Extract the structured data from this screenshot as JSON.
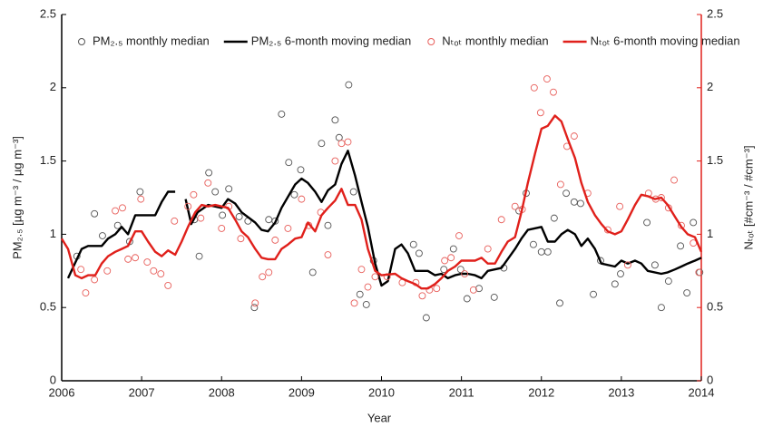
{
  "chart_data": {
    "type": "line",
    "x_label": "Year",
    "y_label": "PM₂.₅ [µg m⁻³ / µg m⁻³]",
    "y2_label": "Nₜₒₜ [#cm⁻³ / #cm⁻³]",
    "xlim": [
      2006,
      2014
    ],
    "xticks": [
      2006,
      2007,
      2008,
      2009,
      2010,
      2011,
      2012,
      2013,
      2014
    ],
    "ylim": [
      0,
      2.5
    ],
    "yticks": [
      0,
      0.5,
      1,
      1.5,
      2,
      2.5
    ],
    "y2lim": [
      0,
      2.5
    ],
    "y2ticks": [
      0,
      0.5,
      1,
      1.5,
      2,
      2.5
    ],
    "grid": false,
    "y_color": "#000000",
    "y2_color": "#e0201b",
    "legend": "top",
    "series": [
      {
        "name": "PM₂.₅ monthly median",
        "style": "markers",
        "color": "#555555",
        "axis": "y",
        "x": [
          2006.19,
          2006.41,
          2006.51,
          2006.7,
          2006.85,
          2006.98,
          2007.66,
          2007.72,
          2007.84,
          2007.92,
          2008.01,
          2008.09,
          2008.22,
          2008.33,
          2008.41,
          2008.59,
          2008.67,
          2008.75,
          2008.84,
          2008.91,
          2008.99,
          2009.14,
          2009.25,
          2009.33,
          2009.42,
          2009.47,
          2009.59,
          2009.65,
          2009.73,
          2009.81,
          2009.9,
          2010.4,
          2010.47,
          2010.56,
          2010.78,
          2010.9,
          2010.99,
          2011.07,
          2011.22,
          2011.41,
          2011.53,
          2011.72,
          2011.81,
          2011.9,
          2012.0,
          2012.08,
          2012.16,
          2012.23,
          2012.31,
          2012.41,
          2012.49,
          2012.65,
          2012.74,
          2012.92,
          2012.99,
          2013.32,
          2013.42,
          2013.5,
          2013.59,
          2013.74,
          2013.82,
          2013.9,
          2013.98
        ],
        "values": [
          0.85,
          1.14,
          0.99,
          1.06,
          0.95,
          1.29,
          1.1,
          0.85,
          1.42,
          1.29,
          1.13,
          1.31,
          1.12,
          1.09,
          0.5,
          1.1,
          1.09,
          1.82,
          1.49,
          1.27,
          1.44,
          0.74,
          1.62,
          1.06,
          1.78,
          1.66,
          2.02,
          1.29,
          0.59,
          0.52,
          0.82,
          0.93,
          0.87,
          0.43,
          0.76,
          0.9,
          0.76,
          0.56,
          0.63,
          0.57,
          0.77,
          1.16,
          1.28,
          0.93,
          0.88,
          0.88,
          1.11,
          0.53,
          1.28,
          1.22,
          1.21,
          0.59,
          0.82,
          0.66,
          0.73,
          1.08,
          0.79,
          0.5,
          0.68,
          0.92,
          0.6,
          1.08,
          0.74
        ]
      },
      {
        "name": "PM₂.₅ 6-month moving median",
        "style": "line",
        "color": "#000000",
        "axis": "y",
        "x": [
          2006.08,
          2006.25,
          2006.33,
          2006.5,
          2006.58,
          2006.67,
          2006.75,
          2006.83,
          2006.92,
          2007.0,
          2007.17,
          2007.25,
          2007.33,
          2007.42,
          2007.5,
          2007.55,
          2007.62,
          2007.7,
          2007.83,
          2008.0,
          2008.08,
          2008.17,
          2008.25,
          2008.42,
          2008.5,
          2008.58,
          2008.67,
          2008.75,
          2008.92,
          2009.0,
          2009.08,
          2009.17,
          2009.25,
          2009.33,
          2009.42,
          2009.5,
          2009.58,
          2009.67,
          2009.75,
          2009.83,
          2009.92,
          2010.0,
          2010.08,
          2010.17,
          2010.25,
          2010.33,
          2010.42,
          2010.5,
          2010.58,
          2010.67,
          2010.75,
          2010.83,
          2010.92,
          2011.0,
          2011.08,
          2011.17,
          2011.25,
          2011.33,
          2011.5,
          2011.67,
          2011.75,
          2011.83,
          2012.0,
          2012.08,
          2012.17,
          2012.25,
          2012.33,
          2012.42,
          2012.5,
          2012.58,
          2012.67,
          2012.75,
          2012.92,
          2013.0,
          2013.08,
          2013.17,
          2013.25,
          2013.33,
          2013.5,
          2013.58,
          2013.67,
          2013.75,
          2013.83,
          2013.92,
          2014.0
        ],
        "values": [
          0.7,
          0.9,
          0.92,
          0.92,
          0.97,
          1.0,
          1.05,
          1.0,
          1.13,
          1.13,
          1.13,
          1.22,
          1.29,
          1.29,
          null,
          1.24,
          1.07,
          1.15,
          1.2,
          1.18,
          1.24,
          1.21,
          1.15,
          1.08,
          1.03,
          1.02,
          1.08,
          1.18,
          1.34,
          1.38,
          1.35,
          1.29,
          1.22,
          1.3,
          1.34,
          1.48,
          1.57,
          1.4,
          1.22,
          1.05,
          0.8,
          0.65,
          0.68,
          0.9,
          0.93,
          0.87,
          0.75,
          0.75,
          0.75,
          0.72,
          0.73,
          0.7,
          0.72,
          0.73,
          0.73,
          0.72,
          0.7,
          0.75,
          0.77,
          0.9,
          0.97,
          1.03,
          1.05,
          0.95,
          0.95,
          1.0,
          1.03,
          1.0,
          0.92,
          0.97,
          0.9,
          0.8,
          0.78,
          0.82,
          0.8,
          0.82,
          0.8,
          0.75,
          0.73,
          0.74,
          0.76,
          0.78,
          0.8,
          0.82,
          0.84
        ]
      },
      {
        "name": "Nₜₒₜ monthly median",
        "style": "markers",
        "color": "#e8605c",
        "axis": "y2",
        "x": [
          2006.24,
          2006.3,
          2006.41,
          2006.57,
          2006.67,
          2006.76,
          2006.83,
          2006.92,
          2006.99,
          2007.07,
          2007.15,
          2007.24,
          2007.33,
          2007.41,
          2007.58,
          2007.65,
          2007.74,
          2007.83,
          2008.0,
          2008.09,
          2008.24,
          2008.42,
          2008.51,
          2008.59,
          2008.67,
          2008.83,
          2009.0,
          2009.09,
          2009.24,
          2009.33,
          2009.42,
          2009.5,
          2009.58,
          2009.66,
          2009.75,
          2009.83,
          2009.92,
          2010.07,
          2010.26,
          2010.43,
          2010.51,
          2010.6,
          2010.69,
          2010.79,
          2010.87,
          2010.97,
          2011.04,
          2011.15,
          2011.33,
          2011.5,
          2011.67,
          2011.76,
          2011.91,
          2011.99,
          2012.07,
          2012.15,
          2012.24,
          2012.32,
          2012.41,
          2012.58,
          2012.83,
          2012.98,
          2013.08,
          2013.34,
          2013.43,
          2013.5,
          2013.59,
          2013.66,
          2013.75,
          2013.9,
          2013.97
        ],
        "values": [
          0.76,
          0.6,
          0.69,
          0.75,
          1.16,
          1.18,
          0.83,
          0.84,
          1.24,
          0.81,
          0.75,
          0.73,
          0.65,
          1.09,
          1.19,
          1.27,
          1.11,
          1.35,
          1.04,
          1.19,
          0.97,
          0.53,
          0.71,
          0.74,
          0.96,
          1.04,
          1.24,
          1.06,
          1.15,
          0.86,
          1.5,
          1.62,
          1.63,
          0.53,
          0.76,
          0.64,
          0.71,
          0.71,
          0.67,
          0.67,
          0.58,
          0.62,
          0.63,
          0.82,
          0.84,
          0.99,
          0.73,
          0.62,
          0.9,
          1.1,
          1.19,
          1.17,
          2.0,
          1.83,
          2.06,
          1.97,
          1.34,
          1.6,
          1.67,
          1.28,
          1.03,
          1.19,
          0.79,
          1.28,
          1.24,
          1.25,
          1.18,
          1.37,
          1.06,
          0.94,
          0.74
        ]
      },
      {
        "name": "Nₜₒₜ 6-month moving median",
        "style": "line",
        "color": "#e0201b",
        "axis": "y2",
        "x": [
          2006.0,
          2006.08,
          2006.17,
          2006.25,
          2006.33,
          2006.42,
          2006.5,
          2006.58,
          2006.67,
          2006.75,
          2006.83,
          2006.92,
          2007.0,
          2007.08,
          2007.17,
          2007.25,
          2007.33,
          2007.42,
          2007.5,
          2007.58,
          2007.67,
          2007.75,
          2007.83,
          2007.92,
          2008.0,
          2008.08,
          2008.17,
          2008.25,
          2008.33,
          2008.42,
          2008.5,
          2008.58,
          2008.67,
          2008.75,
          2008.83,
          2008.92,
          2009.0,
          2009.08,
          2009.17,
          2009.25,
          2009.33,
          2009.42,
          2009.5,
          2009.58,
          2009.67,
          2009.75,
          2009.83,
          2009.92,
          2010.0,
          2010.17,
          2010.25,
          2010.33,
          2010.42,
          2010.5,
          2010.58,
          2010.67,
          2010.75,
          2010.83,
          2010.92,
          2011.0,
          2011.17,
          2011.25,
          2011.33,
          2011.42,
          2011.5,
          2011.58,
          2011.67,
          2011.75,
          2011.83,
          2011.92,
          2012.0,
          2012.08,
          2012.17,
          2012.25,
          2012.33,
          2012.42,
          2012.5,
          2012.58,
          2012.67,
          2012.75,
          2012.83,
          2012.92,
          2013.0,
          2013.08,
          2013.17,
          2013.25,
          2013.33,
          2013.42,
          2013.5,
          2013.58,
          2013.67,
          2013.75,
          2013.83,
          2013.92,
          2014.0
        ],
        "values": [
          0.97,
          0.9,
          0.72,
          0.7,
          0.72,
          0.72,
          0.8,
          0.85,
          0.88,
          0.9,
          0.92,
          1.02,
          1.02,
          0.95,
          0.88,
          0.85,
          0.89,
          0.86,
          0.95,
          1.05,
          1.15,
          1.2,
          1.19,
          1.2,
          1.19,
          1.18,
          1.1,
          1.02,
          0.98,
          0.9,
          0.84,
          0.83,
          0.83,
          0.9,
          0.93,
          0.97,
          0.98,
          1.08,
          1.02,
          1.13,
          1.18,
          1.23,
          1.31,
          1.2,
          1.2,
          1.1,
          0.9,
          0.75,
          0.72,
          0.73,
          0.7,
          0.68,
          0.66,
          0.63,
          0.63,
          0.66,
          0.7,
          0.75,
          0.78,
          0.82,
          0.82,
          0.84,
          0.8,
          0.8,
          0.88,
          0.95,
          0.98,
          1.15,
          1.35,
          1.55,
          1.72,
          1.74,
          1.81,
          1.77,
          1.65,
          1.52,
          1.35,
          1.22,
          1.13,
          1.07,
          1.02,
          1.0,
          1.02,
          1.1,
          1.2,
          1.27,
          1.26,
          1.24,
          1.25,
          1.2,
          1.12,
          1.05,
          1.0,
          0.98,
          0.88
        ]
      }
    ]
  }
}
